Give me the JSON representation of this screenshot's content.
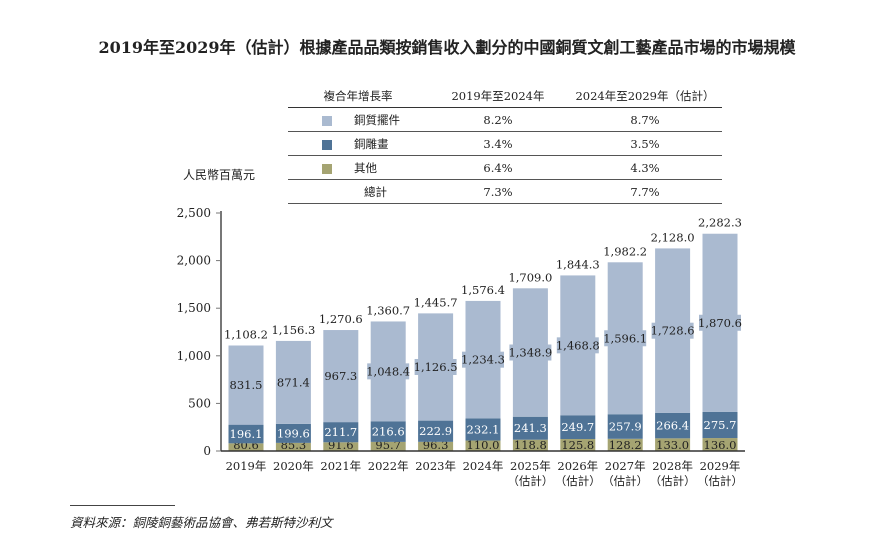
{
  "title": "2019年至2029年（估計）根據產品品類按銷售收入劃分的中國銅質文創工藝產品市場的市場規模",
  "cagr_table": {
    "headers": [
      "複合年增長率",
      "2019年至2024年",
      "2024年至2029年（估計）"
    ],
    "rows": [
      {
        "label": "銅質擺件",
        "a": "8.2%",
        "b": "8.7%"
      },
      {
        "label": "銅雕畫",
        "a": "3.4%",
        "b": "3.5%"
      },
      {
        "label": "其他",
        "a": "6.4%",
        "b": "4.3%"
      },
      {
        "label": "總計",
        "a": "7.3%",
        "b": "7.7%"
      }
    ]
  },
  "source": "資料來源：銅陵銅藝術品協會、弗若斯特沙利文",
  "chart_data": {
    "type": "bar",
    "stacked": true,
    "ylabel": "人民幣百萬元",
    "ylim": [
      0,
      2500
    ],
    "yticks": [
      "0",
      "500",
      "1,000",
      "1,500",
      "2,000",
      "2,500"
    ],
    "categories": [
      "2019年",
      "2020年",
      "2021年",
      "2022年",
      "2023年",
      "2024年",
      "2025年\n（估計）",
      "2026年\n（估計）",
      "2027年\n（估計）",
      "2028年\n（估計）",
      "2029年\n（估計）"
    ],
    "series": [
      {
        "name": "其他",
        "color": "#a5a472",
        "values": [
          80.6,
          85.3,
          91.6,
          95.7,
          96.3,
          110.0,
          118.8,
          125.8,
          128.2,
          133.0,
          136.0
        ]
      },
      {
        "name": "銅雕畫",
        "color": "#4f7396",
        "values": [
          196.1,
          199.6,
          211.7,
          216.6,
          222.9,
          232.1,
          241.3,
          249.7,
          257.9,
          266.4,
          275.7
        ]
      },
      {
        "name": "銅質擺件",
        "color": "#aabad0",
        "values": [
          831.5,
          871.4,
          967.3,
          1048.4,
          1126.5,
          1234.3,
          1348.9,
          1468.8,
          1596.1,
          1728.6,
          1870.6
        ]
      }
    ],
    "totals": [
      1108.2,
      1156.3,
      1270.6,
      1360.7,
      1445.7,
      1576.4,
      1709.0,
      1844.3,
      1982.2,
      2128.0,
      2282.3
    ]
  }
}
